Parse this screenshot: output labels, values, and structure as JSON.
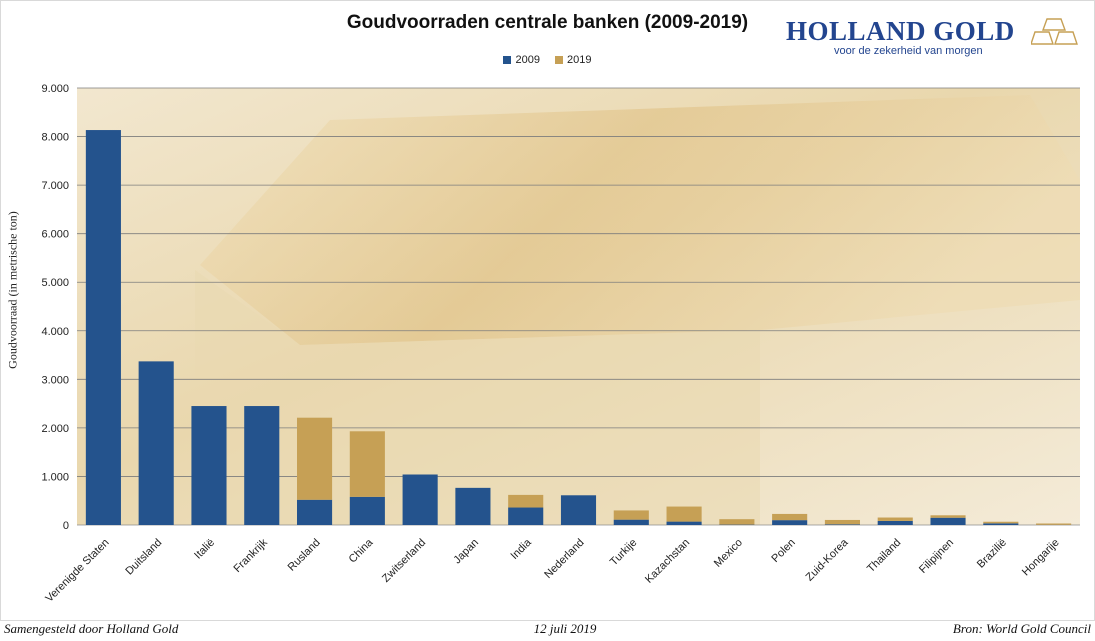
{
  "chart_data": {
    "type": "bar",
    "stacked": true,
    "title": "Goudvoorraden centrale banken (2009-2019)",
    "ylabel": "Goudvoorraad (in metrische ton)",
    "xlabel": "",
    "ylim": [
      0,
      9000
    ],
    "yticks": [
      0,
      1000,
      2000,
      3000,
      4000,
      5000,
      6000,
      7000,
      8000,
      9000
    ],
    "ytick_labels": [
      "0",
      "1.000",
      "2.000",
      "3.000",
      "4.000",
      "5.000",
      "6.000",
      "7.000",
      "8.000",
      "9.000"
    ],
    "grid": true,
    "legend_position": "top-center",
    "categories": [
      "Verenigde Staten",
      "Duitsland",
      "Italië",
      "Frankrijk",
      "Rusland",
      "China",
      "Zwitserland",
      "Japan",
      "India",
      "Nederland",
      "Turkije",
      "Kazachstan",
      "Mexico",
      "Polen",
      "Zuid-Korea",
      "Thailand",
      "Filipijnen",
      "Brazilië",
      "Hongarije"
    ],
    "series": [
      {
        "name": "2009",
        "color": "#24538d",
        "values": [
          8134,
          3370,
          2450,
          2450,
          520,
          580,
          1040,
          765,
          360,
          612,
          110,
          70,
          8,
          100,
          14,
          84,
          150,
          34,
          3
        ]
      },
      {
        "name": "2019",
        "color": "#c6a055",
        "values": [
          0,
          0,
          0,
          0,
          1690,
          1350,
          0,
          0,
          260,
          0,
          190,
          310,
          112,
          128,
          90,
          70,
          50,
          33,
          28
        ]
      }
    ]
  },
  "brand": {
    "name": "HOLLAND GOLD",
    "tagline": "voor de zekerheid van morgen",
    "color": "#23458f"
  },
  "footer": {
    "left": "Samengesteld door Holland Gold",
    "center": "12 juli 2019",
    "right": "Bron: World Gold Council"
  }
}
